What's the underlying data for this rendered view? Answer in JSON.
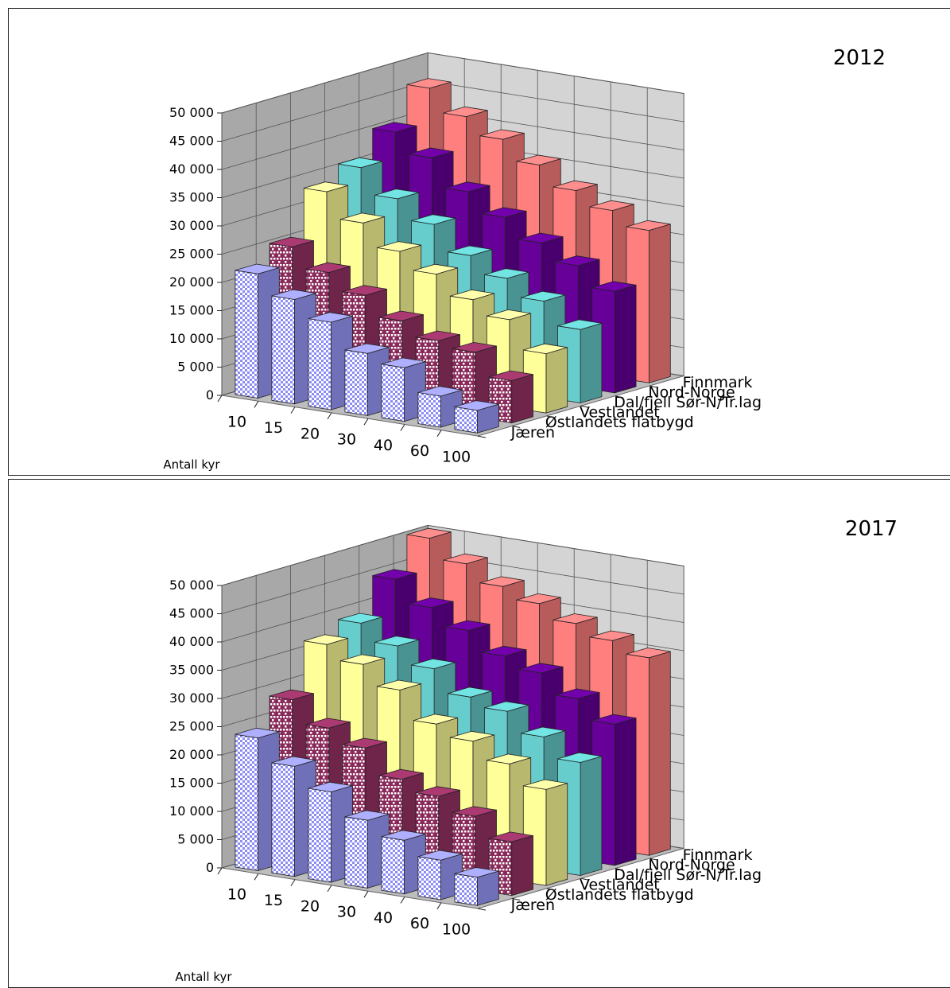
{
  "chart_data": [
    {
      "type": "bar3d",
      "title": "2012",
      "xlabel": "Antall kyr",
      "categories": [
        "10",
        "15",
        "20",
        "30",
        "40",
        "60",
        "100"
      ],
      "series": [
        {
          "name": "Jæren",
          "values": [
            22000,
            18500,
            15500,
            11000,
            9500,
            5500,
            4000
          ],
          "color": "#9c9cff",
          "pattern": "checker"
        },
        {
          "name": "Østlandets flatbygd",
          "values": [
            25000,
            21500,
            18500,
            15000,
            12500,
            11500,
            7500
          ],
          "color": "#993366",
          "pattern": "brick"
        },
        {
          "name": "Vestlandet",
          "values": [
            33000,
            28500,
            24500,
            21500,
            18000,
            15500,
            10500
          ],
          "color": "#ffff99",
          "pattern": "solid"
        },
        {
          "name": "Dal/fjell Sør-N/Tr.lag",
          "values": [
            35500,
            31000,
            27500,
            23000,
            20000,
            17000,
            13000
          ],
          "color": "#66cccc",
          "pattern": "solid"
        },
        {
          "name": "Nord-Norge",
          "values": [
            40000,
            36500,
            31500,
            28000,
            24500,
            21500,
            18000
          ],
          "color": "#660099",
          "pattern": "solid"
        },
        {
          "name": "Finnmark",
          "values": [
            46000,
            42000,
            39000,
            35500,
            32000,
            29500,
            27000
          ],
          "color": "#ff7f7f",
          "pattern": "solid"
        }
      ],
      "yticks": [
        "0",
        "5 000",
        "10 000",
        "15 000",
        "20 000",
        "25 000",
        "30 000",
        "35 000",
        "40 000",
        "45 000",
        "50 000"
      ],
      "ylim": [
        0,
        50000
      ],
      "grid": true
    },
    {
      "type": "bar3d",
      "title": "2017",
      "xlabel": "Antall kyr",
      "categories": [
        "10",
        "15",
        "20",
        "30",
        "40",
        "60",
        "100"
      ],
      "series": [
        {
          "name": "Jæren",
          "values": [
            23500,
            19500,
            16000,
            12000,
            9500,
            7000,
            5000
          ],
          "color": "#9c9cff",
          "pattern": "checker"
        },
        {
          "name": "Østlandets flatbygd",
          "values": [
            28500,
            24500,
            22000,
            17500,
            15500,
            13000,
            9500
          ],
          "color": "#993366",
          "pattern": "brick"
        },
        {
          "name": "Vestlandet",
          "values": [
            36500,
            34000,
            30500,
            25500,
            23500,
            20500,
            17000
          ],
          "color": "#ffff99",
          "pattern": "solid"
        },
        {
          "name": "Dal/fjell Sør-N/Tr.lag",
          "values": [
            38500,
            35500,
            32500,
            28500,
            27000,
            23500,
            20000
          ],
          "color": "#66cccc",
          "pattern": "solid"
        },
        {
          "name": "Nord-Norge",
          "values": [
            44500,
            40500,
            37500,
            34000,
            32000,
            28500,
            25000
          ],
          "color": "#660099",
          "pattern": "solid"
        },
        {
          "name": "Finnmark",
          "values": [
            50000,
            46500,
            43500,
            41500,
            39000,
            37000,
            35000
          ],
          "color": "#ff7f7f",
          "pattern": "solid"
        }
      ],
      "yticks": [
        "0",
        "5 000",
        "10 000",
        "15 000",
        "20 000",
        "25 000",
        "30 000",
        "35 000",
        "40 000",
        "45 000",
        "50 000"
      ],
      "ylim": [
        0,
        50000
      ],
      "grid": true
    }
  ]
}
